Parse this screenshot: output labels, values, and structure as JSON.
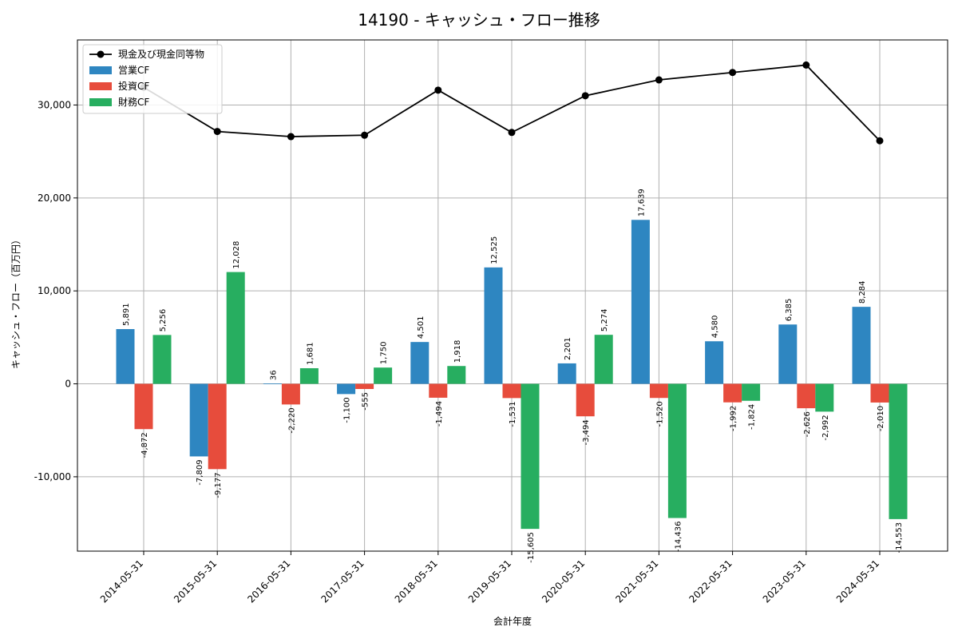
{
  "chart_data": {
    "type": "bar",
    "title": "14190 - キャッシュ・フロー推移",
    "xlabel": "会計年度",
    "ylabel": "キャッシュ・フロー（百万円）",
    "ylim": [
      -18000,
      37000
    ],
    "yticks": [
      -10000,
      0,
      10000,
      20000,
      30000
    ],
    "ytick_labels": [
      "-10,000",
      "0",
      "10,000",
      "20,000",
      "30,000"
    ],
    "grid": true,
    "legend_position": "top-left",
    "categories": [
      "2014-05-31",
      "2015-05-31",
      "2016-05-31",
      "2017-05-31",
      "2018-05-31",
      "2019-05-31",
      "2020-05-31",
      "2021-05-31",
      "2022-05-31",
      "2023-05-31",
      "2024-05-31"
    ],
    "series": [
      {
        "name": "営業CF",
        "type": "bar",
        "color": "#2e86c1",
        "values": [
          5891,
          -7809,
          36,
          -1100,
          4501,
          12525,
          2201,
          17639,
          4580,
          6385,
          8284
        ],
        "labels": [
          "5,891",
          "-7,809",
          "36",
          "-1,100",
          "4,501",
          "12,525",
          "2,201",
          "17,639",
          "4,580",
          "6,385",
          "8,284"
        ]
      },
      {
        "name": "投資CF",
        "type": "bar",
        "color": "#e74c3c",
        "values": [
          -4872,
          -9177,
          -2220,
          -555,
          -1494,
          -1531,
          -3494,
          -1520,
          -1992,
          -2626,
          -2010
        ],
        "labels": [
          "-4,872",
          "-9,177",
          "-2,220",
          "-555",
          "-1,494",
          "-1,531",
          "-3,494",
          "-1,520",
          "-1,992",
          "-2,626",
          "-2,010"
        ]
      },
      {
        "name": "財務CF",
        "type": "bar",
        "color": "#27ae60",
        "values": [
          5256,
          12028,
          1681,
          1750,
          1918,
          -15605,
          5274,
          -14436,
          -1824,
          -2992,
          -14553
        ],
        "labels": [
          "5,256",
          "12,028",
          "1,681",
          "1,750",
          "1,918",
          "-15,605",
          "5,274",
          "-14,436",
          "-1,824",
          "-2,992",
          "-14,553"
        ]
      },
      {
        "name": "現金及び現金同等物",
        "type": "line",
        "color": "#000000",
        "values": [
          31900,
          27150,
          26600,
          26750,
          31600,
          27050,
          31000,
          32700,
          33500,
          34300,
          26150
        ]
      }
    ]
  }
}
